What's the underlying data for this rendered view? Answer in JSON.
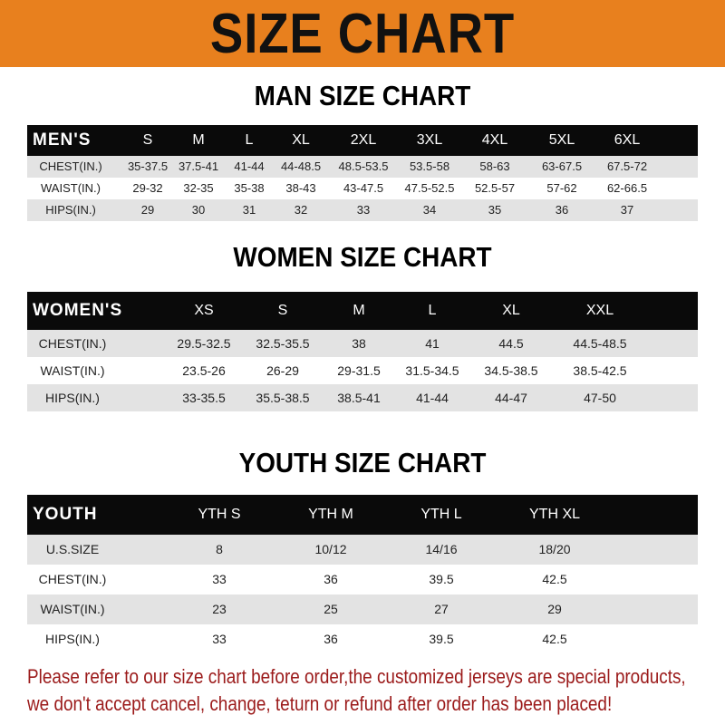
{
  "banner": {
    "title": "SIZE CHART",
    "color": "#e8801e"
  },
  "men": {
    "title": "MAN SIZE CHART",
    "header": [
      "MEN'S",
      "S",
      "M",
      "L",
      "XL",
      "2XL",
      "3XL",
      "4XL",
      "5XL",
      "6XL"
    ],
    "rows": [
      [
        "CHEST(IN.)",
        "35-37.5",
        "37.5-41",
        "41-44",
        "44-48.5",
        "48.5-53.5",
        "53.5-58",
        "58-63",
        "63-67.5",
        "67.5-72"
      ],
      [
        "WAIST(IN.)",
        "29-32",
        "32-35",
        "35-38",
        "38-43",
        "43-47.5",
        "47.5-52.5",
        "52.5-57",
        "57-62",
        "62-66.5"
      ],
      [
        "HIPS(IN.)",
        "29",
        "30",
        "31",
        "32",
        "33",
        "34",
        "35",
        "36",
        "37"
      ]
    ]
  },
  "women": {
    "title": "WOMEN SIZE CHART",
    "header": [
      "WOMEN'S",
      "XS",
      "S",
      "M",
      "L",
      "XL",
      "XXL"
    ],
    "rows": [
      [
        "CHEST(IN.)",
        "29.5-32.5",
        "32.5-35.5",
        "38",
        "41",
        "44.5",
        "44.5-48.5"
      ],
      [
        "WAIST(IN.)",
        "23.5-26",
        "26-29",
        "29-31.5",
        "31.5-34.5",
        "34.5-38.5",
        "38.5-42.5"
      ],
      [
        "HIPS(IN.)",
        "33-35.5",
        "35.5-38.5",
        "38.5-41",
        "41-44",
        "44-47",
        "47-50"
      ]
    ]
  },
  "youth": {
    "title": "YOUTH SIZE CHART",
    "header": [
      "YOUTH",
      "YTH S",
      "YTH M",
      "YTH L",
      "YTH XL"
    ],
    "rows": [
      [
        "U.S.SIZE",
        "8",
        "10/12",
        "14/16",
        "18/20"
      ],
      [
        "CHEST(IN.)",
        "33",
        "36",
        "39.5",
        "42.5"
      ],
      [
        "WAIST(IN.)",
        "23",
        "25",
        "27",
        "29"
      ],
      [
        "HIPS(IN.)",
        "33",
        "36",
        "39.5",
        "42.5"
      ]
    ]
  },
  "notice": {
    "line1": "Please refer to our size chart before order,the customized jerseys are special products,",
    "line2": "we don't accept cancel, change, teturn or refund after order has been placed!",
    "color": "#9b1a1a"
  }
}
